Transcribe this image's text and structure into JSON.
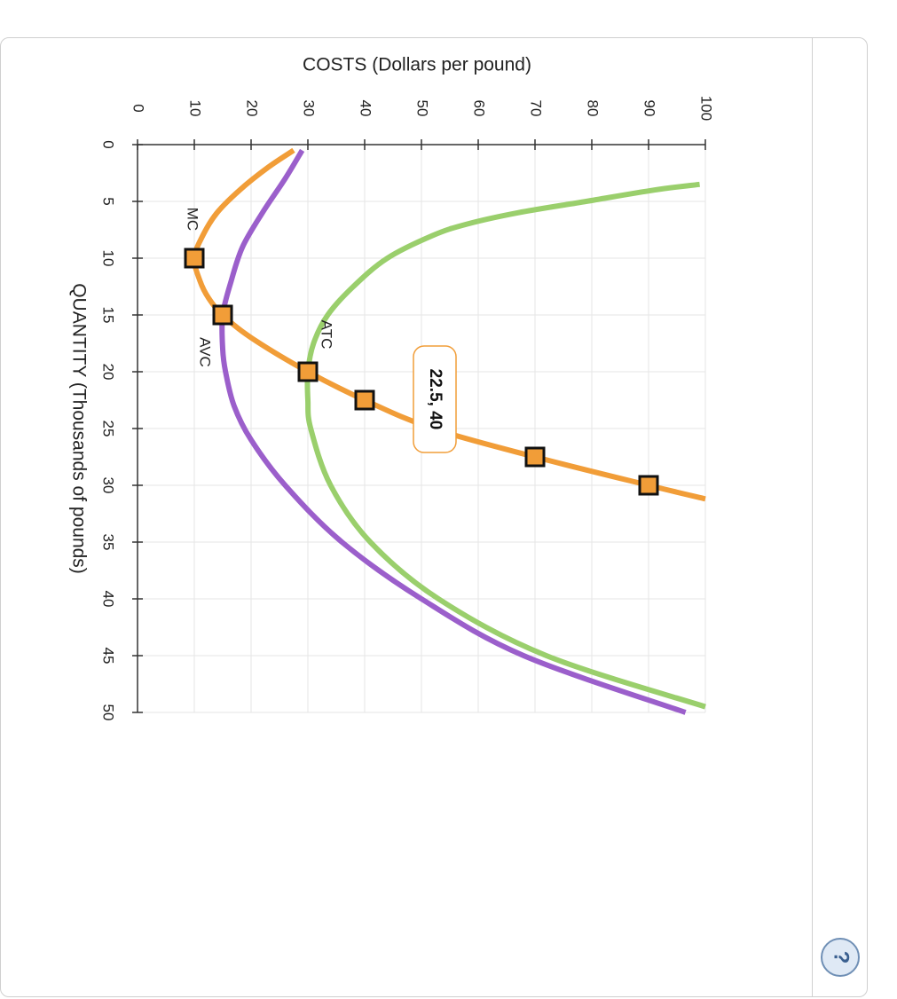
{
  "help": {
    "icon": "?"
  },
  "colors": {
    "mc": "#F19D38",
    "avc": "#9B5FCB",
    "atc": "#9ACF6C",
    "grid": "#e6e6e6"
  },
  "chart_data": {
    "type": "line",
    "orientation": "rotated 90 degrees clockwise",
    "xlabel": "QUANTITY (Thousands of pounds)",
    "ylabel": "COSTS (Dollars per pound)",
    "xlim": [
      0,
      50
    ],
    "ylim": [
      0,
      100
    ],
    "x_ticks": [
      0,
      5,
      10,
      15,
      20,
      25,
      30,
      35,
      40,
      45,
      50
    ],
    "y_ticks": [
      0,
      10,
      20,
      30,
      40,
      50,
      60,
      70,
      80,
      90,
      100
    ],
    "grid": true,
    "series": [
      {
        "name": "MC",
        "color": "#F19D38",
        "points": [
          [
            0.5,
            27.5
          ],
          [
            2,
            23
          ],
          [
            4,
            18
          ],
          [
            6,
            14
          ],
          [
            8,
            11.5
          ],
          [
            10,
            10
          ],
          [
            12,
            11
          ],
          [
            13.5,
            12.5
          ],
          [
            15,
            15
          ],
          [
            17,
            20
          ],
          [
            20,
            30
          ],
          [
            22.5,
            40
          ],
          [
            25,
            52
          ],
          [
            27.5,
            70
          ],
          [
            30,
            90
          ],
          [
            31.2,
            100
          ]
        ],
        "markers": [
          [
            10,
            10
          ],
          [
            15,
            15
          ],
          [
            20,
            30
          ],
          [
            22.5,
            40
          ],
          [
            27.5,
            70
          ],
          [
            30,
            90
          ]
        ]
      },
      {
        "name": "AVC",
        "color": "#9B5FCB",
        "points": [
          [
            0.5,
            29
          ],
          [
            3,
            26
          ],
          [
            6,
            22
          ],
          [
            9,
            18.5
          ],
          [
            12,
            16.5
          ],
          [
            15,
            15
          ],
          [
            18,
            15
          ],
          [
            20,
            15.5
          ],
          [
            23,
            17
          ],
          [
            26,
            20
          ],
          [
            30,
            26
          ],
          [
            35,
            36
          ],
          [
            40,
            50
          ],
          [
            45,
            68
          ],
          [
            50,
            96.5
          ]
        ]
      },
      {
        "name": "ATC",
        "color": "#9ACF6C",
        "points": [
          [
            3.5,
            99
          ],
          [
            4,
            91
          ],
          [
            5,
            79
          ],
          [
            6,
            67
          ],
          [
            7,
            58
          ],
          [
            8,
            52
          ],
          [
            10,
            44
          ],
          [
            12.5,
            38
          ],
          [
            15,
            33.5
          ],
          [
            17.5,
            31
          ],
          [
            20,
            30
          ],
          [
            22.5,
            30
          ],
          [
            25,
            30.5
          ],
          [
            30,
            34
          ],
          [
            35,
            41
          ],
          [
            40,
            53
          ],
          [
            45,
            72
          ],
          [
            49.5,
            100
          ]
        ]
      }
    ],
    "annotation": {
      "label": "22.5, 40",
      "x": 22.5,
      "y": 40
    }
  }
}
